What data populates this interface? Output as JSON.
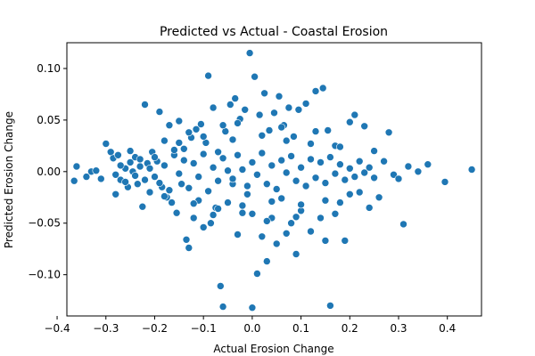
{
  "chart_data": {
    "type": "scatter",
    "title": "Predicted vs Actual - Coastal Erosion",
    "xlabel": "Actual Erosion Change",
    "ylabel": "Predicted Erosion Change",
    "xlim": [
      -0.38,
      0.47
    ],
    "ylim": [
      -0.14,
      0.125
    ],
    "xticks": [
      -0.4,
      -0.3,
      -0.2,
      -0.1,
      0.0,
      0.1,
      0.2,
      0.3,
      0.4
    ],
    "xtick_labels": [
      "−0.4",
      "−0.3",
      "−0.2",
      "−0.1",
      "0.0",
      "0.1",
      "0.2",
      "0.3",
      "0.4"
    ],
    "yticks": [
      -0.1,
      -0.05,
      0.0,
      0.05,
      0.1
    ],
    "ytick_labels": [
      "−0.10",
      "−0.05",
      "0.00",
      "0.05",
      "0.10"
    ],
    "grid": false,
    "marker_color": "#1f77b4",
    "marker_edge_color": "#ffffff",
    "points": [
      [
        -0.36,
        0.005
      ],
      [
        -0.365,
        -0.009
      ],
      [
        -0.34,
        -0.005
      ],
      [
        -0.33,
        0.0
      ],
      [
        -0.31,
        -0.007
      ],
      [
        -0.3,
        0.027
      ],
      [
        -0.29,
        0.019
      ],
      [
        -0.285,
        0.013
      ],
      [
        -0.28,
        -0.022
      ],
      [
        -0.275,
        0.016
      ],
      [
        -0.27,
        -0.008
      ],
      [
        -0.26,
        0.003
      ],
      [
        -0.255,
        -0.015
      ],
      [
        -0.25,
        0.02
      ],
      [
        -0.245,
        0.0
      ],
      [
        -0.24,
        0.014
      ],
      [
        -0.235,
        -0.012
      ],
      [
        -0.23,
        0.005
      ],
      [
        -0.225,
        -0.034
      ],
      [
        -0.22,
        0.065
      ],
      [
        -0.215,
        0.008
      ],
      [
        -0.21,
        -0.02
      ],
      [
        -0.205,
        0.019
      ],
      [
        -0.2,
        -0.005
      ],
      [
        -0.195,
        0.01
      ],
      [
        -0.19,
        0.058
      ],
      [
        -0.185,
        -0.015
      ],
      [
        -0.18,
        0.03
      ],
      [
        -0.175,
        -0.025
      ],
      [
        -0.17,
        0.045
      ],
      [
        -0.165,
        -0.03
      ],
      [
        -0.16,
        0.016
      ],
      [
        -0.155,
        -0.04
      ],
      [
        -0.15,
        0.049
      ],
      [
        -0.145,
        -0.012
      ],
      [
        -0.14,
        0.022
      ],
      [
        -0.135,
        -0.066
      ],
      [
        -0.13,
        -0.074
      ],
      [
        -0.125,
        0.033
      ],
      [
        -0.12,
        -0.045
      ],
      [
        -0.115,
        0.041
      ],
      [
        -0.11,
        -0.028
      ],
      [
        -0.105,
        0.046
      ],
      [
        -0.1,
        -0.054
      ],
      [
        -0.095,
        0.028
      ],
      [
        -0.09,
        0.093
      ],
      [
        -0.085,
        -0.05
      ],
      [
        -0.08,
        0.062
      ],
      [
        -0.075,
        -0.035
      ],
      [
        -0.07,
        0.019
      ],
      [
        -0.065,
        -0.111
      ],
      [
        -0.06,
        -0.131
      ],
      [
        -0.055,
        0.039
      ],
      [
        -0.05,
        -0.03
      ],
      [
        -0.045,
        0.065
      ],
      [
        -0.04,
        -0.012
      ],
      [
        -0.035,
        0.071
      ],
      [
        -0.03,
        -0.061
      ],
      [
        -0.025,
        0.051
      ],
      [
        -0.02,
        -0.04
      ],
      [
        -0.015,
        0.06
      ],
      [
        -0.01,
        -0.022
      ],
      [
        -0.005,
        0.115
      ],
      [
        0.0,
        -0.132
      ],
      [
        0.005,
        0.092
      ],
      [
        0.01,
        -0.099
      ],
      [
        0.015,
        0.055
      ],
      [
        0.02,
        -0.063
      ],
      [
        0.025,
        0.076
      ],
      [
        0.03,
        -0.087
      ],
      [
        0.035,
        0.04
      ],
      [
        0.04,
        -0.045
      ],
      [
        0.045,
        0.057
      ],
      [
        0.05,
        -0.07
      ],
      [
        0.055,
        0.073
      ],
      [
        0.06,
        -0.026
      ],
      [
        0.065,
        0.045
      ],
      [
        0.07,
        -0.06
      ],
      [
        0.075,
        0.062
      ],
      [
        0.08,
        -0.05
      ],
      [
        0.085,
        0.034
      ],
      [
        0.09,
        -0.08
      ],
      [
        0.095,
        0.06
      ],
      [
        0.1,
        -0.038
      ],
      [
        0.11,
        0.066
      ],
      [
        0.12,
        -0.058
      ],
      [
        0.13,
        0.078
      ],
      [
        0.14,
        -0.045
      ],
      [
        0.145,
        0.081
      ],
      [
        0.15,
        -0.067
      ],
      [
        0.155,
        0.04
      ],
      [
        0.16,
        -0.13
      ],
      [
        0.17,
        0.025
      ],
      [
        0.18,
        -0.03
      ],
      [
        0.19,
        -0.067
      ],
      [
        0.2,
        0.048
      ],
      [
        0.21,
        0.055
      ],
      [
        0.22,
        -0.02
      ],
      [
        0.23,
        0.044
      ],
      [
        0.24,
        -0.035
      ],
      [
        0.25,
        0.02
      ],
      [
        0.26,
        -0.025
      ],
      [
        0.27,
        0.01
      ],
      [
        0.28,
        0.038
      ],
      [
        0.29,
        -0.003
      ],
      [
        0.3,
        -0.007
      ],
      [
        0.31,
        -0.051
      ],
      [
        0.32,
        0.005
      ],
      [
        0.34,
        0.0
      ],
      [
        0.36,
        0.007
      ],
      [
        0.395,
        -0.01
      ],
      [
        0.45,
        0.002
      ],
      [
        -0.32,
        0.001
      ],
      [
        -0.28,
        -0.003
      ],
      [
        -0.27,
        0.006
      ],
      [
        -0.26,
        -0.01
      ],
      [
        -0.25,
        0.009
      ],
      [
        -0.24,
        -0.004
      ],
      [
        -0.23,
        0.012
      ],
      [
        -0.22,
        -0.008
      ],
      [
        -0.21,
        0.003
      ],
      [
        -0.2,
        0.014
      ],
      [
        -0.19,
        -0.011
      ],
      [
        -0.18,
        0.006
      ],
      [
        -0.17,
        -0.018
      ],
      [
        -0.16,
        0.021
      ],
      [
        -0.15,
        -0.002
      ],
      [
        -0.14,
        0.011
      ],
      [
        -0.13,
        -0.016
      ],
      [
        -0.12,
        0.008
      ],
      [
        -0.11,
        -0.005
      ],
      [
        -0.1,
        0.017
      ],
      [
        -0.09,
        -0.019
      ],
      [
        -0.08,
        0.004
      ],
      [
        -0.07,
        -0.009
      ],
      [
        -0.06,
        0.013
      ],
      [
        -0.05,
        0.001
      ],
      [
        -0.04,
        -0.007
      ],
      [
        -0.03,
        0.016
      ],
      [
        -0.02,
        0.002
      ],
      [
        -0.01,
        -0.014
      ],
      [
        0.0,
        0.009
      ],
      [
        0.01,
        -0.003
      ],
      [
        0.02,
        0.018
      ],
      [
        0.03,
        -0.012
      ],
      [
        0.04,
        0.006
      ],
      [
        0.05,
        -0.017
      ],
      [
        0.06,
        0.011
      ],
      [
        0.07,
        -0.001
      ],
      [
        0.08,
        0.015
      ],
      [
        0.09,
        -0.009
      ],
      [
        0.1,
        0.004
      ],
      [
        0.11,
        -0.014
      ],
      [
        0.12,
        0.012
      ],
      [
        0.13,
        -0.006
      ],
      [
        0.14,
        0.009
      ],
      [
        0.15,
        -0.011
      ],
      [
        0.16,
        0.014
      ],
      [
        0.17,
        -0.002
      ],
      [
        0.18,
        0.007
      ],
      [
        0.19,
        -0.008
      ],
      [
        0.2,
        0.003
      ],
      [
        0.21,
        -0.005
      ],
      [
        0.22,
        0.01
      ],
      [
        0.23,
        -0.001
      ],
      [
        0.24,
        0.004
      ],
      [
        0.25,
        -0.006
      ],
      [
        -0.15,
        0.028
      ],
      [
        -0.12,
        -0.031
      ],
      [
        -0.1,
        0.034
      ],
      [
        -0.07,
        -0.036
      ],
      [
        -0.04,
        0.031
      ],
      [
        -0.02,
        -0.033
      ],
      [
        0.02,
        0.035
      ],
      [
        0.04,
        -0.029
      ],
      [
        0.07,
        0.03
      ],
      [
        0.1,
        -0.032
      ],
      [
        0.12,
        0.027
      ],
      [
        0.15,
        -0.028
      ],
      [
        0.18,
        0.024
      ],
      [
        0.2,
        -0.022
      ],
      [
        -0.18,
        -0.024
      ],
      [
        -0.06,
        0.045
      ],
      [
        0.0,
        -0.041
      ],
      [
        0.06,
        0.043
      ],
      [
        0.09,
        -0.044
      ],
      [
        -0.03,
        0.047
      ],
      [
        0.03,
        -0.048
      ],
      [
        0.13,
        0.039
      ],
      [
        -0.13,
        0.038
      ],
      [
        0.17,
        -0.041
      ],
      [
        -0.08,
        -0.042
      ]
    ]
  }
}
